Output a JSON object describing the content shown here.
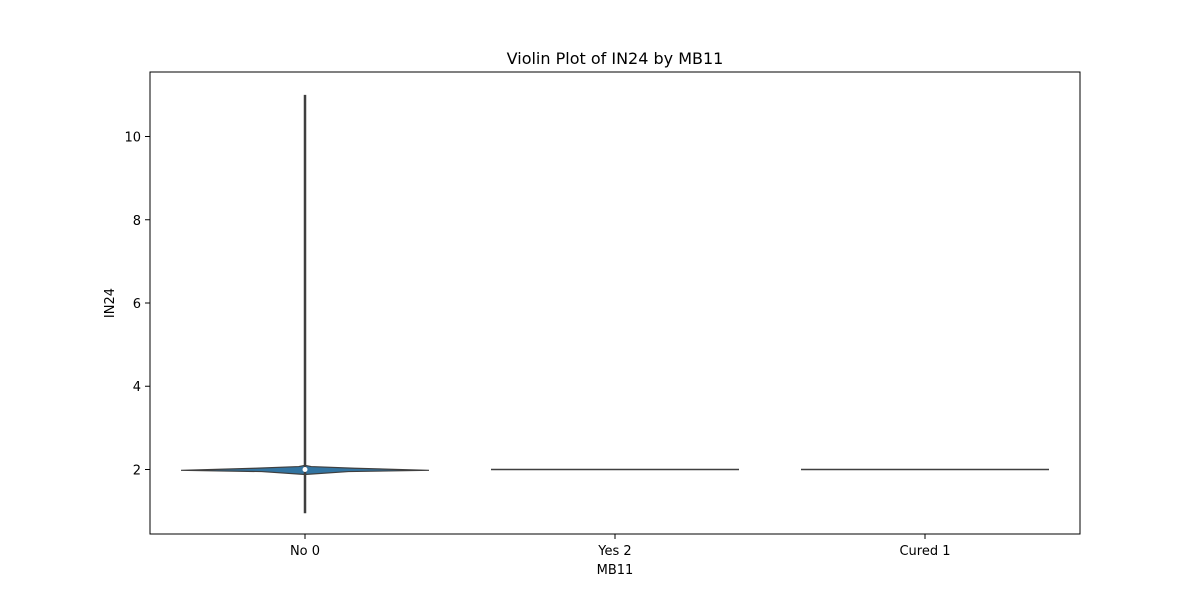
{
  "chart_data": {
    "type": "violin",
    "title": "Violin Plot of IN24 by MB11",
    "xlabel": "MB11",
    "ylabel": "IN24",
    "categories": [
      "No 0",
      "Yes 2",
      "Cured 1"
    ],
    "ylim": [
      0.45,
      11.55
    ],
    "yticks": [
      2,
      4,
      6,
      8,
      10
    ],
    "grid": false,
    "violins": [
      {
        "category": "No 0",
        "min": 0.95,
        "max": 11.0,
        "q1": 1.98,
        "median": 2.0,
        "q3": 2.02,
        "density": [
          {
            "y": 1.88,
            "w": 0.0
          },
          {
            "y": 1.95,
            "w": 0.35
          },
          {
            "y": 1.98,
            "w": 1.0
          },
          {
            "y": 2.0,
            "w": 0.75
          },
          {
            "y": 2.03,
            "w": 0.4
          },
          {
            "y": 2.07,
            "w": 0.05
          },
          {
            "y": 2.1,
            "w": 0.0
          }
        ]
      },
      {
        "category": "Yes 2",
        "min": 2.0,
        "max": 2.0,
        "median": 2.0,
        "density": []
      },
      {
        "category": "Cured 1",
        "min": 2.0,
        "max": 2.0,
        "median": 2.0,
        "density": []
      }
    ],
    "colors": {
      "fill": "#3274a1",
      "line": "#3f3f3f"
    }
  }
}
